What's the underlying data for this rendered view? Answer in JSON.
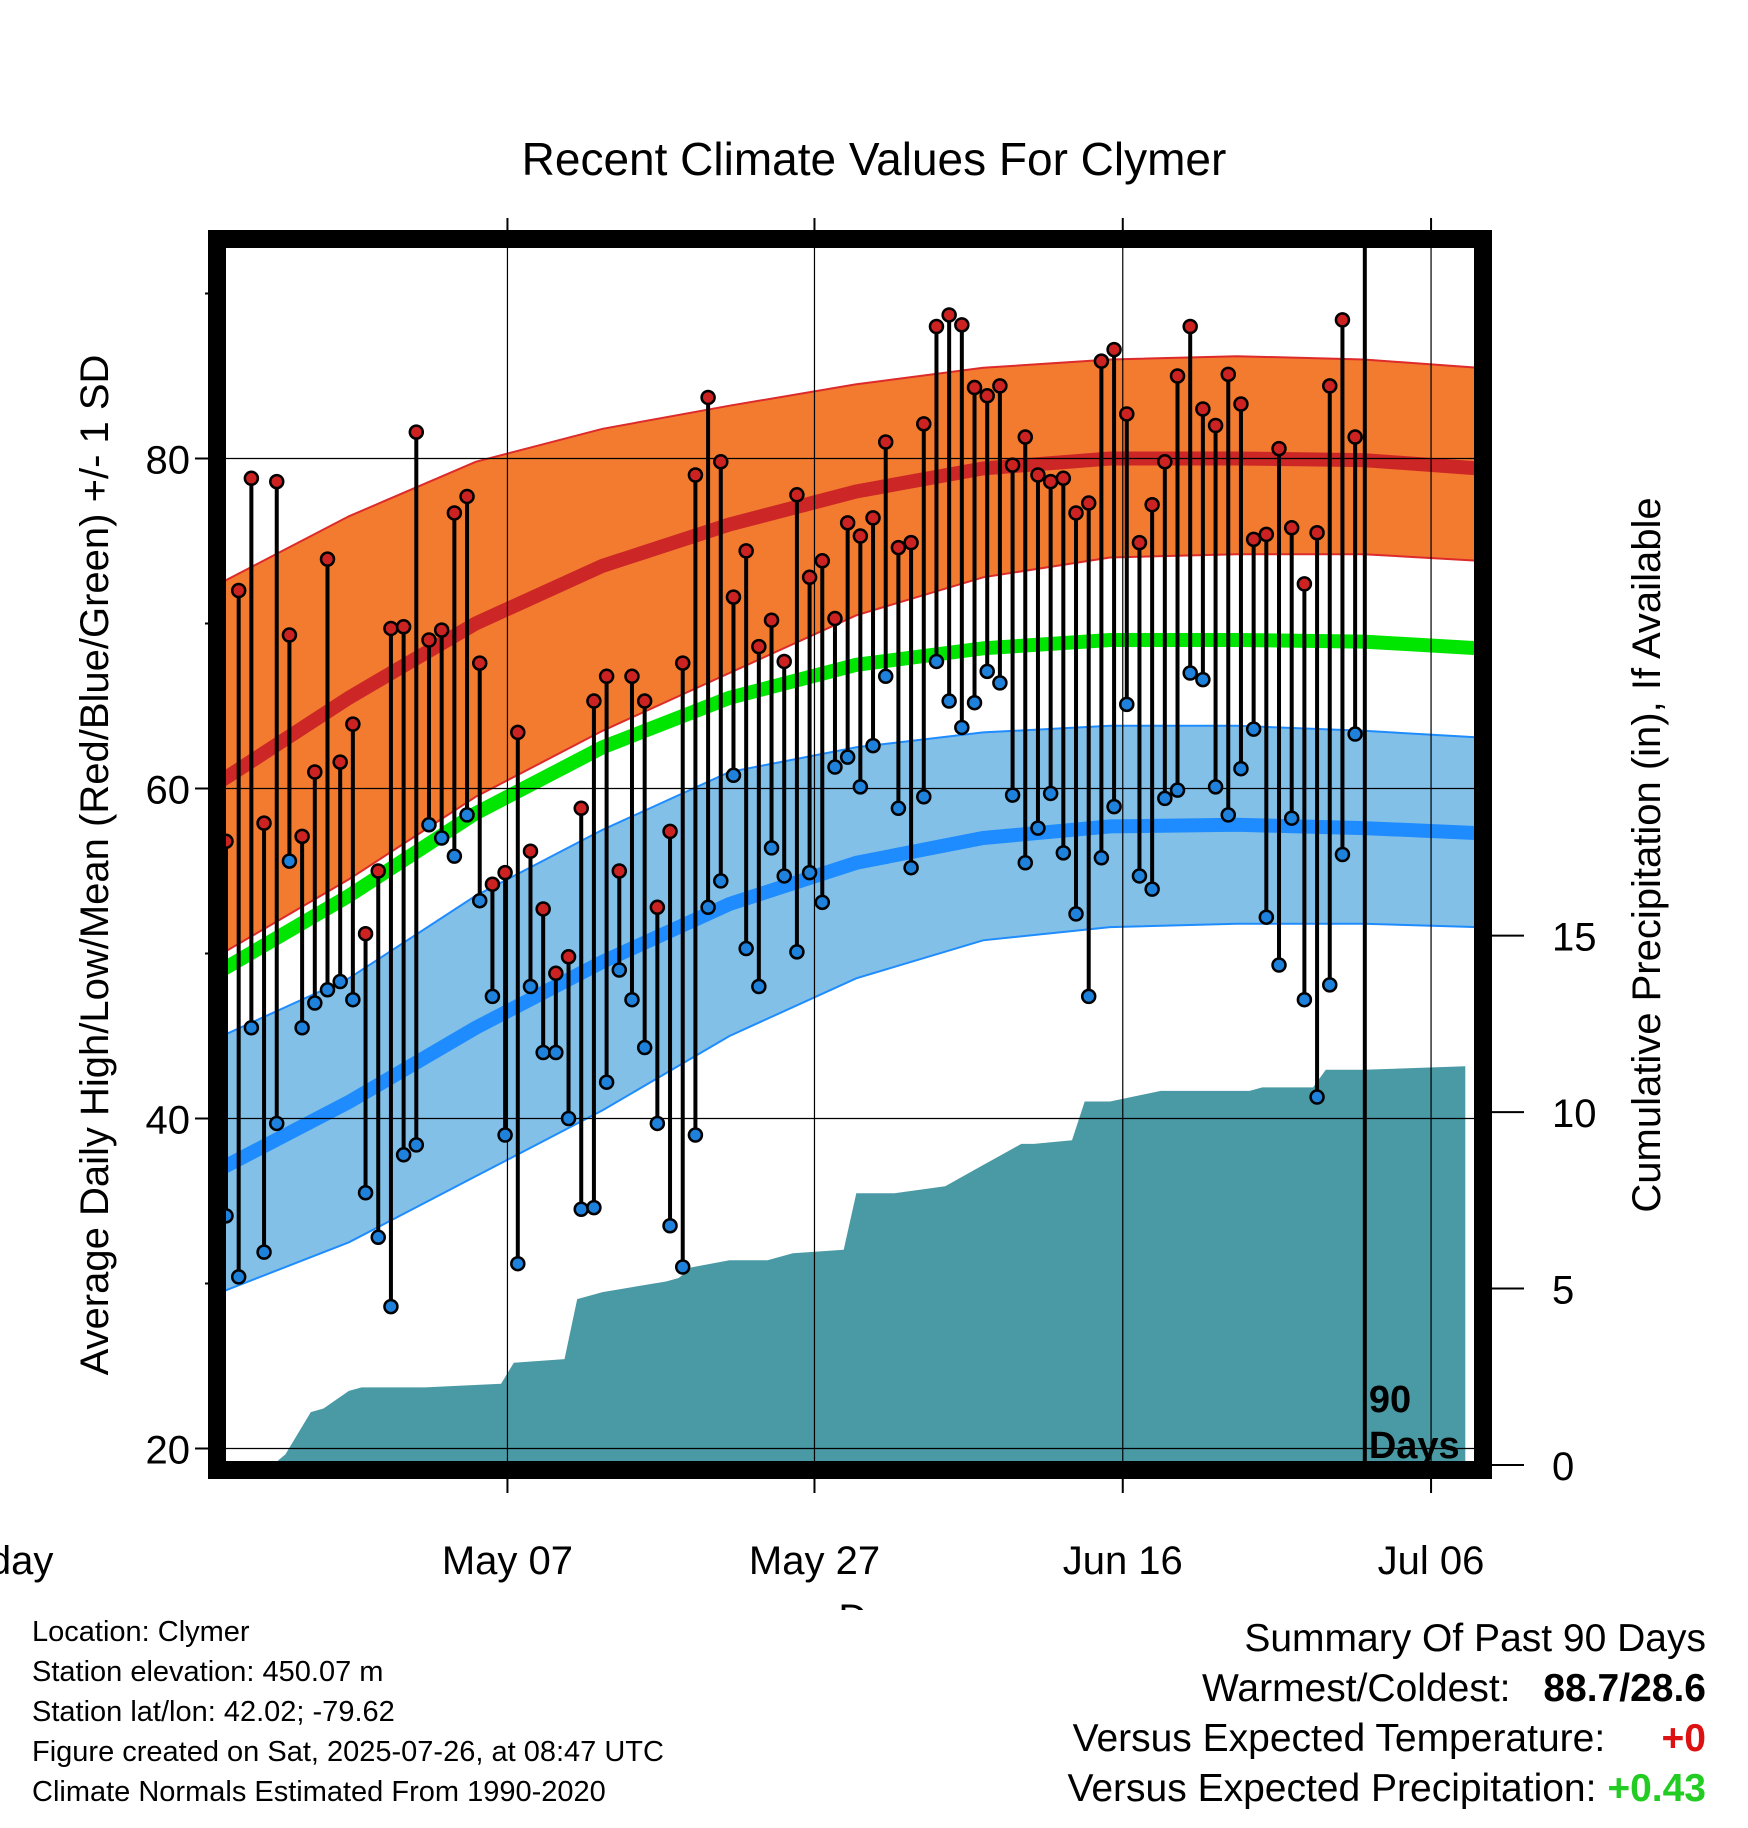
{
  "chart_data": {
    "type": "line",
    "title": "Recent Climate Values For Clymer",
    "xlabel": "Day",
    "ylabel": "Average Daily High/Low/Mean (Red/Blue/Green) +/- 1 SD",
    "y2label": "Cumulative Precipitation (in), If Available",
    "x_tick_labels": [
      "May 07",
      "May 27",
      "Jun 16",
      "Jul 06",
      "Today"
    ],
    "y_ticks": [
      20,
      40,
      60,
      80
    ],
    "y2_ticks": [
      0,
      5,
      10,
      15
    ],
    "ylim": [
      19,
      93
    ],
    "y2lim": [
      0,
      34.6
    ],
    "xlim_days": [
      -90,
      9
    ],
    "grid": true,
    "today_marker_label": "90 Days",
    "colors": {
      "high_band": "#f27b30",
      "high_mean": "#cc2626",
      "low_band": "#82c0e8",
      "low_mean": "#1e8cff",
      "mean": "#00e600",
      "precip": "#4a9aa5",
      "high_dot": "#cc2222",
      "low_dot": "#1e82dc"
    },
    "normals": {
      "day": [
        -90,
        -80,
        -70,
        -60,
        -50,
        -40,
        -30,
        -20,
        -10,
        0,
        9
      ],
      "high_mean": [
        60.5,
        65.5,
        70.0,
        73.5,
        76.0,
        78.0,
        79.4,
        80.0,
        80.0,
        79.9,
        79.4
      ],
      "high_upper": [
        72.5,
        76.5,
        79.8,
        81.8,
        83.2,
        84.5,
        85.5,
        86.0,
        86.2,
        86.0,
        85.5
      ],
      "high_lower": [
        50.0,
        54.5,
        59.5,
        63.5,
        67.0,
        70.5,
        72.8,
        74.0,
        74.2,
        74.2,
        73.8
      ],
      "mean": [
        49.0,
        53.5,
        58.5,
        62.5,
        65.5,
        67.5,
        68.5,
        69.0,
        69.0,
        68.9,
        68.5
      ],
      "low_mean": [
        37.0,
        41.0,
        45.5,
        49.5,
        53.0,
        55.5,
        57.0,
        57.7,
        57.8,
        57.6,
        57.3
      ],
      "low_upper": [
        45.0,
        48.5,
        53.5,
        57.5,
        61.0,
        62.5,
        63.4,
        63.8,
        63.8,
        63.5,
        63.1
      ],
      "low_lower": [
        29.5,
        32.5,
        36.5,
        40.5,
        45.0,
        48.5,
        50.8,
        51.6,
        51.8,
        51.8,
        51.6
      ]
    },
    "series": [
      {
        "name": "High",
        "values": [
          56.8,
          72.0,
          78.8,
          57.9,
          78.6,
          69.3,
          57.1,
          61.0,
          73.9,
          61.6,
          63.9,
          51.2,
          55.0,
          69.7,
          69.8,
          81.6,
          69.0,
          69.6,
          76.7,
          77.7,
          67.6,
          54.2,
          54.9,
          63.4,
          56.2,
          52.7,
          48.8,
          49.8,
          58.8,
          65.3,
          66.8,
          55.0,
          66.8,
          65.3,
          52.8,
          57.4,
          67.6,
          79.0,
          83.7,
          79.8,
          71.6,
          74.4,
          68.6,
          70.2,
          67.7,
          77.8,
          72.8,
          73.8,
          70.3,
          76.1,
          75.3,
          76.4,
          81.0,
          74.6,
          74.9,
          82.1,
          88.0,
          88.7,
          88.1,
          84.3,
          83.8,
          84.4,
          79.6,
          81.3,
          79.0,
          78.6,
          78.8,
          76.7,
          77.3,
          85.9,
          86.6,
          82.7,
          74.9,
          77.2,
          79.8,
          85.0,
          88.0,
          83.0,
          82.0,
          85.1,
          83.3,
          75.1,
          75.4,
          80.6,
          75.8,
          72.4,
          75.5,
          84.4,
          88.4,
          81.3
        ]
      },
      {
        "name": "Low",
        "values": [
          34.1,
          30.4,
          45.5,
          31.9,
          39.7,
          55.6,
          45.5,
          47.0,
          47.8,
          48.3,
          47.2,
          35.5,
          32.8,
          28.6,
          37.8,
          38.4,
          57.8,
          57.0,
          55.9,
          58.4,
          53.2,
          47.4,
          39.0,
          31.2,
          48.0,
          44.0,
          44.0,
          40.0,
          34.5,
          34.6,
          42.2,
          49.0,
          47.2,
          44.3,
          39.7,
          33.5,
          31.0,
          39.0,
          52.8,
          54.4,
          60.8,
          50.3,
          48.0,
          56.4,
          54.7,
          50.1,
          54.9,
          53.1,
          61.3,
          61.9,
          60.1,
          62.6,
          66.8,
          58.8,
          55.2,
          59.5,
          67.7,
          65.3,
          63.7,
          65.2,
          67.1,
          66.4,
          59.6,
          55.5,
          57.6,
          59.7,
          56.1,
          52.4,
          47.4,
          55.8,
          58.9,
          65.1,
          54.7,
          53.9,
          59.4,
          59.9,
          67.0,
          66.6,
          60.1,
          58.4,
          61.2,
          63.6,
          52.2,
          49.3,
          58.2,
          47.2,
          41.3,
          48.1,
          56.0,
          63.3
        ]
      }
    ],
    "precip_cumulative": {
      "day": [
        -90,
        -86,
        -85,
        -83,
        -82,
        -80,
        -79,
        -77,
        -74,
        -68,
        -67,
        -63,
        -62,
        -60,
        -55,
        -54,
        -53,
        -50,
        -47,
        -45,
        -41,
        -40,
        -37,
        -33,
        -30,
        -29,
        -27,
        -26,
        -23,
        -22,
        -20,
        -16,
        -14,
        -13,
        -9,
        -8,
        -4,
        -3,
        0,
        8
      ],
      "inches": [
        0,
        0,
        0.3,
        1.5,
        1.6,
        2.1,
        2.2,
        2.2,
        2.2,
        2.3,
        2.9,
        3.0,
        4.7,
        4.9,
        5.2,
        5.3,
        5.6,
        5.8,
        5.8,
        6.0,
        6.1,
        7.7,
        7.7,
        7.9,
        8.5,
        8.7,
        9.1,
        9.1,
        9.2,
        10.3,
        10.3,
        10.6,
        10.6,
        10.6,
        10.6,
        10.7,
        10.7,
        11.2,
        11.2,
        11.3
      ]
    }
  },
  "info": {
    "location": "Location: Clymer",
    "elevation": "Station elevation: 450.07 m",
    "latlon": "Station lat/lon: 42.02; -79.62",
    "created": "Figure created on Sat, 2025-07-26, at 08:47 UTC",
    "normals": "Climate Normals Estimated From 1990-2020"
  },
  "summary": {
    "title": "Summary Of Past 90 Days",
    "warm_cold_label": "Warmest/Coldest:",
    "warm_cold_value": "88.7/28.6",
    "temp_label": "Versus Expected Temperature:",
    "temp_value": "+0",
    "temp_color": "#dd1111",
    "precip_label": "Versus Expected Precipitation:",
    "precip_value": "+0.43",
    "precip_color": "#22cc22"
  }
}
